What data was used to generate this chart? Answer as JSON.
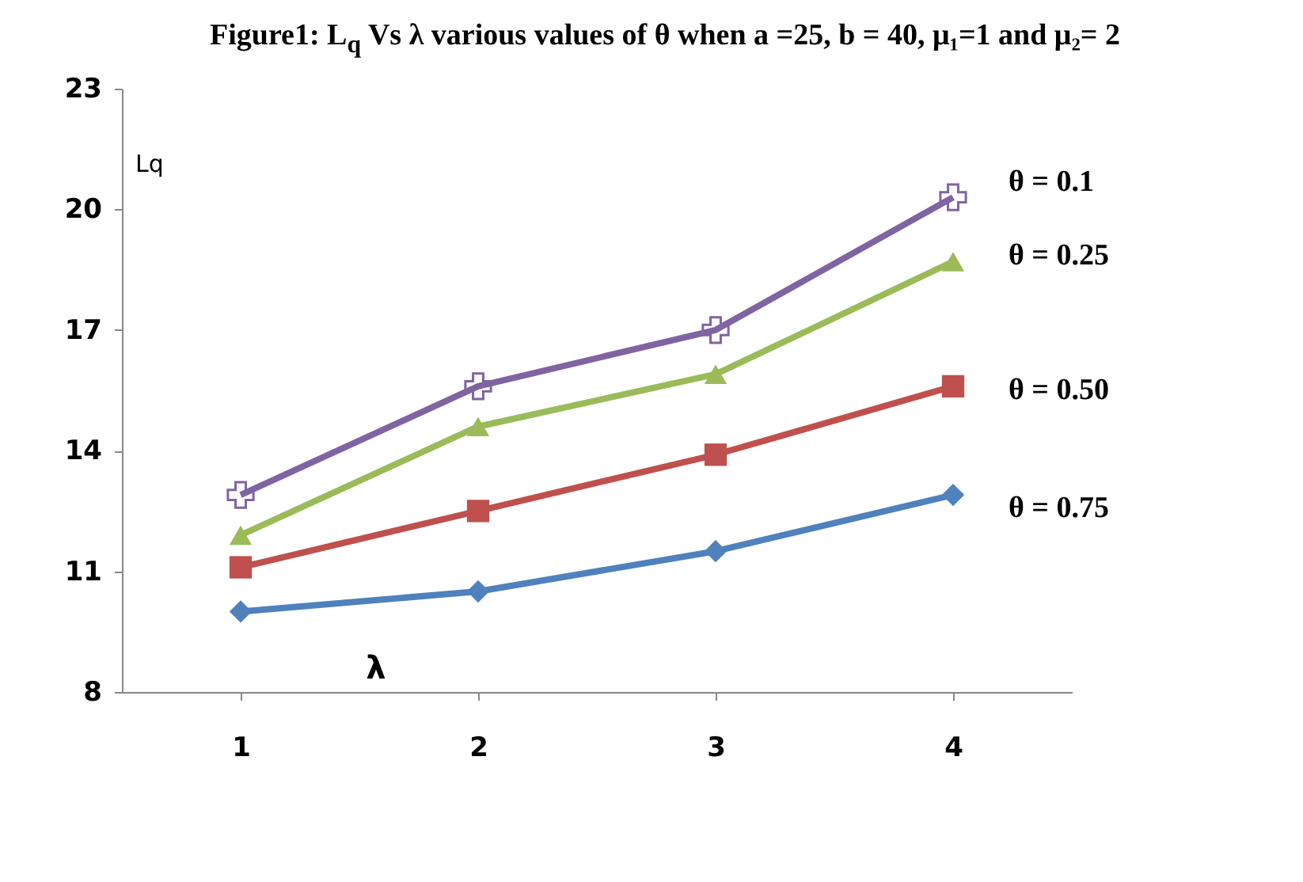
{
  "chart_data": {
    "type": "line",
    "title": "Figure1: L$_{q}$ Vs λ various values of θ when a =25, b = 40, μ₁=1 and μ₂= 2",
    "xlabel": "λ",
    "ylabel": "Lq",
    "categories": [
      "1",
      "2",
      "3",
      "4"
    ],
    "series": [
      {
        "name": "θ = 0.1",
        "color": "#8064a2",
        "marker": "cross",
        "values": [
          12.9,
          15.6,
          17.0,
          20.3
        ]
      },
      {
        "name": "θ = 0.25",
        "color": "#9bbb59",
        "marker": "triangle",
        "values": [
          11.9,
          14.6,
          15.9,
          18.7
        ]
      },
      {
        "name": "θ = 0.50",
        "color": "#c0504d",
        "marker": "square",
        "values": [
          11.1,
          12.5,
          13.9,
          15.6
        ]
      },
      {
        "name": "θ = 0.75",
        "color": "#4f81bd",
        "marker": "diamond",
        "values": [
          10.0,
          10.5,
          11.5,
          12.9
        ]
      }
    ],
    "ylim": [
      8,
      23
    ],
    "yticks": [
      8,
      11,
      14,
      17,
      20,
      23
    ],
    "grid": false
  }
}
